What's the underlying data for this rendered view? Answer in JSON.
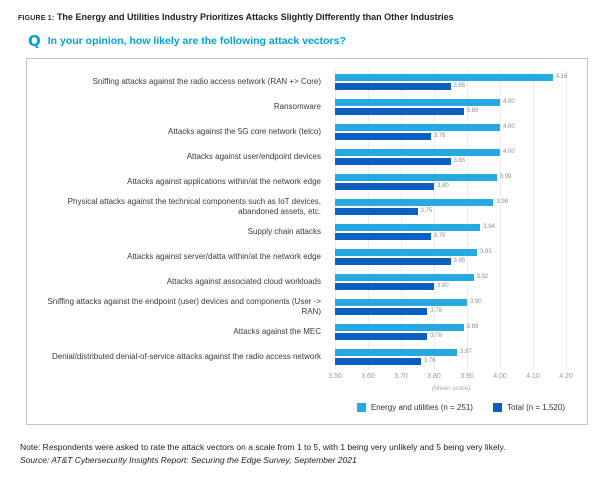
{
  "figure": {
    "label": "FIGURE 1:",
    "title": "The Energy and Utilities Industry Prioritizes Attacks Slightly Differently than Other Industries"
  },
  "question": {
    "icon": "Q",
    "text": "In your opinion, how likely are the following attack vectors?"
  },
  "chart_data": {
    "type": "bar",
    "orientation": "horizontal",
    "categories": [
      "Sniffing attacks against the radio access network (RAN +> Core)",
      "Ransomware",
      "Attacks against the 5G core network (telco)",
      "Attacks against user/endpoint devices",
      "Attacks against applications within/at the network edge",
      "Physical attacks against the technical components such as IoT devices, abandoned assets, etc.",
      "Supply chain attacks",
      "Attacks against server/datta within/at the network edge",
      "Attacks against associated cloud workloads",
      "Sniffing attacks against the endpoint (user) devices and components (User -> RAN)",
      "Attacks against the MEC",
      "Denial/distributed denial-of-service attacks against the radio access network"
    ],
    "series": [
      {
        "name": "Energy and utilities (n = 251)",
        "color": "#25a9e0",
        "values": [
          4.16,
          4.0,
          4.0,
          4.0,
          3.99,
          3.98,
          3.94,
          3.93,
          3.92,
          3.9,
          3.89,
          3.87
        ]
      },
      {
        "name": "Total (n = 1,520)",
        "color": "#0a5fc0",
        "values": [
          3.85,
          3.89,
          3.79,
          3.85,
          3.8,
          3.75,
          3.79,
          3.85,
          3.8,
          3.78,
          3.78,
          3.76
        ]
      }
    ],
    "xlabel": "(Mean score)",
    "xlim": [
      3.5,
      4.2
    ],
    "xticks": [
      "3.50",
      "3.60",
      "3.70",
      "3.80",
      "3.90",
      "4.00",
      "4.10",
      "4.20"
    ],
    "grid": true,
    "legend_position": "bottom-right"
  },
  "notes": {
    "note": "Note: Respondents were asked to rate the attack vectors on a scale from 1 to 5, with 1 being very unlikely and 5 being very likely.",
    "source": "Source: AT&T Cybersecurity Insights Report: Securing the Edge Survey, September 2021"
  },
  "colors": {
    "accent_cyan": "#00a1de",
    "series_light": "#25a9e0",
    "series_dark": "#0a5fc0"
  }
}
